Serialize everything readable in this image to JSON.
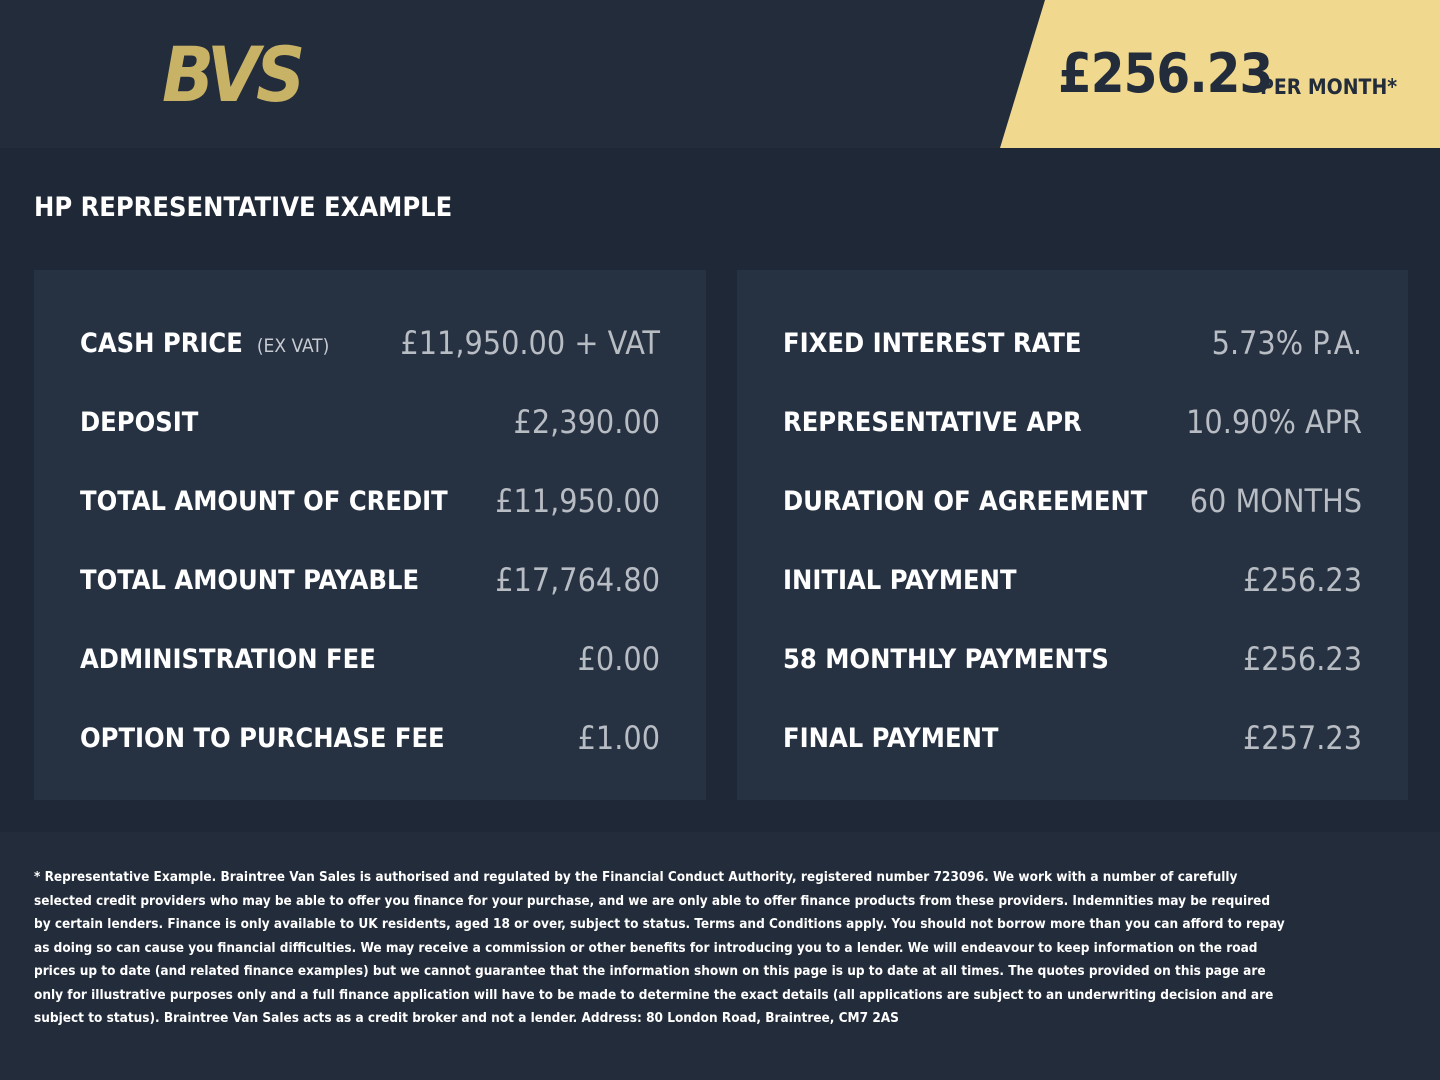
{
  "header": {
    "logo": "BVS",
    "price": "£256.23",
    "price_note": "PER MONTH*"
  },
  "section_title": "HP REPRESENTATIVE EXAMPLE",
  "left": [
    {
      "label": "CASH PRICE",
      "note": "(EX VAT)",
      "value": "£11,950.00 + VAT"
    },
    {
      "label": "DEPOSIT",
      "value": "£2,390.00"
    },
    {
      "label": "TOTAL AMOUNT OF CREDIT",
      "value": "£11,950.00"
    },
    {
      "label": "TOTAL AMOUNT PAYABLE",
      "value": "£17,764.80"
    },
    {
      "label": "ADMINISTRATION FEE",
      "value": "£0.00"
    },
    {
      "label": "OPTION TO PURCHASE FEE",
      "value": "£1.00"
    }
  ],
  "right": [
    {
      "label": "FIXED INTEREST RATE",
      "value": "5.73% P.A."
    },
    {
      "label": "REPRESENTATIVE APR",
      "value": "10.90% APR"
    },
    {
      "label": "DURATION OF AGREEMENT",
      "value": "60 MONTHS"
    },
    {
      "label": "INITIAL PAYMENT",
      "value": "£256.23"
    },
    {
      "label": "58 MONTHLY PAYMENTS",
      "value": "£256.23"
    },
    {
      "label": "FINAL PAYMENT",
      "value": "£257.23"
    }
  ],
  "disclaimer": "* Representative Example. Braintree Van Sales is authorised and regulated by the Financial Conduct Authority, registered number 723096. We work with a number of carefully selected credit providers who may be able to offer you finance for your purchase, and we are only able to offer finance products from these providers. Indemnities may be required by certain lenders. Finance is only available to UK residents, aged 18 or over, subject to status. Terms and Conditions apply. You should not borrow more than you can afford to repay as doing so can cause you financial difficulties. We may receive a commission or other benefits for introducing you to a lender. We will endeavour to keep information on the road prices up to date (and related finance examples) but we cannot guarantee that the information shown on this page is up to date at all times. The quotes provided on this page are only for illustrative purposes only and a full finance application will have to be made to determine the exact details (all applications are subject to an underwriting decision and are subject to status). Braintree Van Sales acts as a credit broker and not a lender. Address: 80 London Road, Braintree, CM7 2AS"
}
